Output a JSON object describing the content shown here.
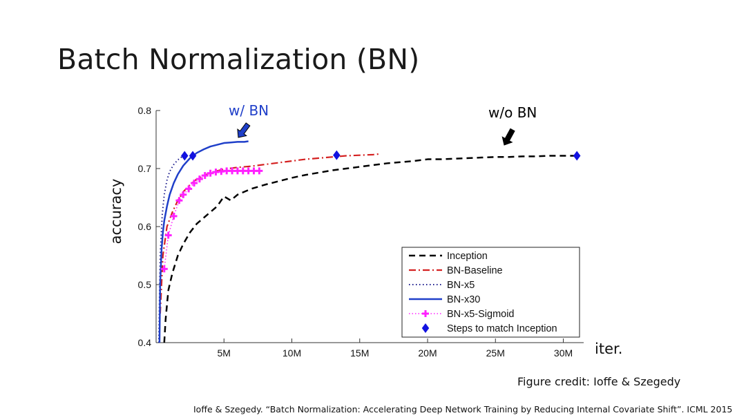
{
  "slide": {
    "title": "Batch Normalization (BN)",
    "figure_credit": "Figure credit: Ioffe & Szegedy",
    "citation": "Ioffe & Szegedy. “Batch Normalization: Accelerating Deep Network Training by Reducing Internal Covariate Shift”. ICML 2015"
  },
  "chart_data": {
    "type": "line",
    "title": "",
    "xlabel": "iter.",
    "ylabel": "accuracy",
    "xlim": [
      0,
      31.5
    ],
    "ylim": [
      0.4,
      0.8
    ],
    "x_unit": "M iterations",
    "x_ticks": [
      5,
      10,
      15,
      20,
      25,
      30
    ],
    "x_tick_labels": [
      "5M",
      "10M",
      "15M",
      "20M",
      "25M",
      "30M"
    ],
    "y_ticks": [
      0.4,
      0.5,
      0.6,
      0.7,
      0.8
    ],
    "y_tick_labels": [
      "0.4",
      "0.5",
      "0.6",
      "0.7",
      "0.8"
    ],
    "legend_position": "bottom-right",
    "annotations": [
      {
        "text": "w/ BN",
        "color": "#1f3fc9",
        "near_series": "BN-x30"
      },
      {
        "text": "w/o BN",
        "color": "#000000",
        "near_series": "Inception"
      }
    ],
    "series": [
      {
        "name": "Inception",
        "color": "#000000",
        "style": "dashed",
        "x": [
          0.6,
          0.7,
          0.9,
          1.2,
          1.6,
          2.0,
          2.5,
          3.0,
          3.5,
          4.0,
          4.5,
          5.0,
          5.5,
          6.0,
          7.0,
          8.0,
          9.0,
          10.0,
          11.0,
          12.0,
          13.0,
          14.0,
          15.0,
          16.0,
          17.0,
          18.0,
          19.0,
          20.0,
          21.0,
          22.0,
          23.0,
          24.0,
          25.0,
          26.0,
          27.0,
          28.0,
          29.0,
          30.0,
          31.0
        ],
        "y": [
          0.4,
          0.44,
          0.49,
          0.52,
          0.55,
          0.57,
          0.59,
          0.605,
          0.615,
          0.625,
          0.635,
          0.652,
          0.645,
          0.655,
          0.665,
          0.672,
          0.678,
          0.684,
          0.689,
          0.693,
          0.697,
          0.7,
          0.703,
          0.706,
          0.709,
          0.711,
          0.713,
          0.716,
          0.716,
          0.717,
          0.718,
          0.719,
          0.72,
          0.72,
          0.721,
          0.721,
          0.722,
          0.722,
          0.722
        ]
      },
      {
        "name": "BN-Baseline",
        "color": "#d42020",
        "style": "dashdot",
        "x": [
          0.3,
          0.5,
          0.8,
          1.2,
          1.6,
          2.0,
          2.5,
          3.0,
          4.0,
          5.0,
          6.0,
          7.0,
          8.0,
          9.0,
          10.0,
          11.0,
          12.0,
          13.0,
          14.0,
          15.0,
          16.0,
          16.4
        ],
        "y": [
          0.45,
          0.55,
          0.6,
          0.625,
          0.645,
          0.66,
          0.672,
          0.682,
          0.693,
          0.699,
          0.702,
          0.704,
          0.707,
          0.71,
          0.713,
          0.716,
          0.718,
          0.72,
          0.722,
          0.723,
          0.724,
          0.725
        ]
      },
      {
        "name": "BN-x5",
        "color": "#1a1a8c",
        "style": "dotted",
        "x": [
          0.2,
          0.3,
          0.45,
          0.6,
          0.8,
          1.0,
          1.3,
          1.6,
          2.0
        ],
        "y": [
          0.4,
          0.55,
          0.62,
          0.655,
          0.68,
          0.695,
          0.707,
          0.715,
          0.722
        ]
      },
      {
        "name": "BN-x30",
        "color": "#1f3fc9",
        "style": "solid",
        "x": [
          0.25,
          0.3,
          0.4,
          0.5,
          0.6,
          0.8,
          1.0,
          1.3,
          1.6,
          2.0,
          2.5,
          3.0,
          3.5,
          4.0,
          4.5,
          5.0,
          5.5,
          6.0,
          6.5,
          6.8
        ],
        "y": [
          0.4,
          0.5,
          0.56,
          0.59,
          0.61,
          0.635,
          0.655,
          0.675,
          0.69,
          0.705,
          0.718,
          0.727,
          0.733,
          0.738,
          0.741,
          0.744,
          0.745,
          0.746,
          0.746,
          0.747
        ]
      },
      {
        "name": "BN-x5-Sigmoid",
        "color": "#ff20ff",
        "style": "dotted-plus",
        "x": [
          0.6,
          0.9,
          1.3,
          1.7,
          2.0,
          2.4,
          2.8,
          3.2,
          3.6,
          4.0,
          4.4,
          4.8,
          5.2,
          5.6,
          6.0,
          6.4,
          6.8,
          7.2,
          7.6
        ],
        "y": [
          0.527,
          0.585,
          0.618,
          0.645,
          0.655,
          0.665,
          0.675,
          0.682,
          0.688,
          0.692,
          0.694,
          0.695,
          0.696,
          0.696,
          0.696,
          0.696,
          0.696,
          0.696,
          0.696
        ]
      },
      {
        "name": "Steps to match Inception",
        "color": "#1212e0",
        "style": "marker-diamond",
        "x": [
          2.1,
          2.7,
          13.3,
          31.0
        ],
        "y": [
          0.722,
          0.722,
          0.723,
          0.722
        ]
      }
    ]
  }
}
